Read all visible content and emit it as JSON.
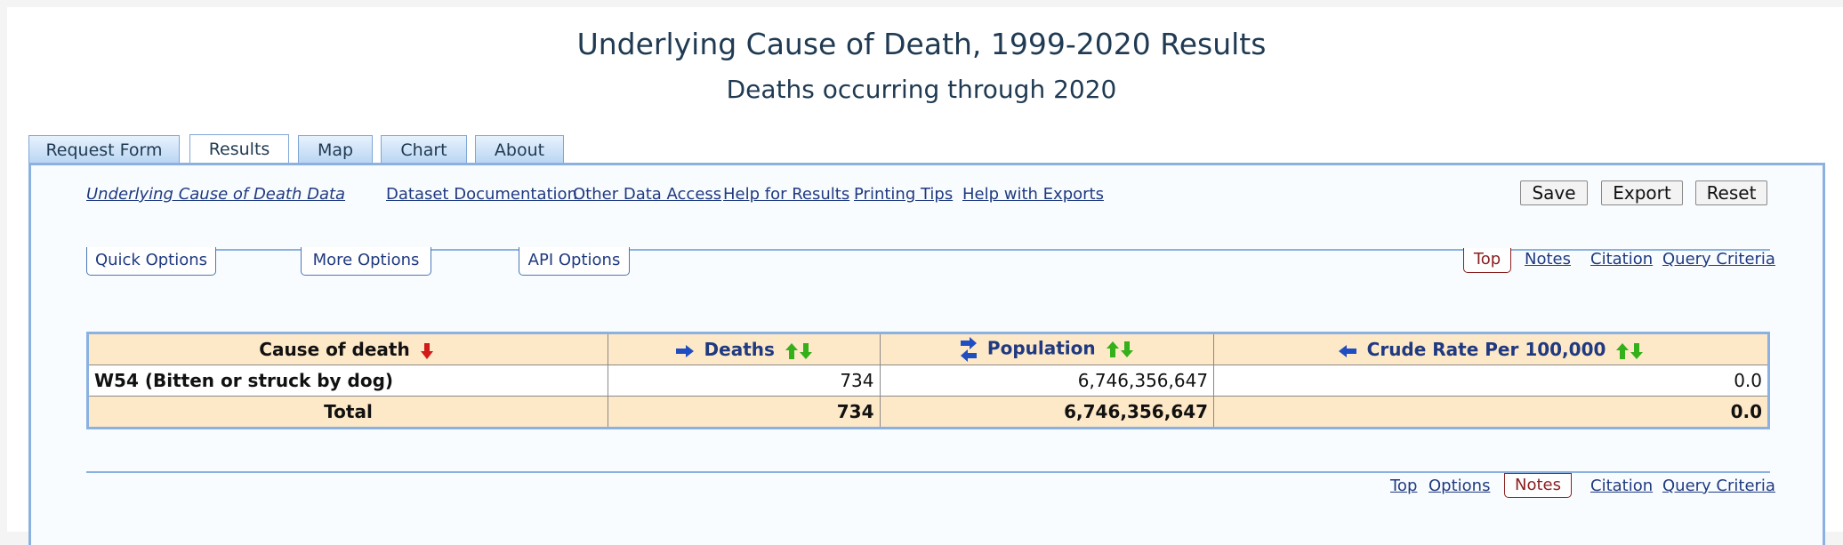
{
  "header": {
    "title": "Underlying Cause of Death, 1999-2020 Results",
    "subtitle": "Deaths occurring through 2020"
  },
  "tabs": [
    {
      "label": "Request Form",
      "active": false
    },
    {
      "label": "Results",
      "active": true
    },
    {
      "label": "Map",
      "active": false
    },
    {
      "label": "Chart",
      "active": false
    },
    {
      "label": "About",
      "active": false
    }
  ],
  "links": {
    "dataset": "Underlying Cause of Death Data",
    "documentation": "Dataset Documentation",
    "other_access": "Other Data Access",
    "help_results": "Help for Results",
    "printing_tips": "Printing Tips",
    "help_exports": "Help with Exports"
  },
  "actions": {
    "save": "Save",
    "export": "Export",
    "reset": "Reset"
  },
  "options": {
    "quick": "Quick Options",
    "more": "More Options",
    "api": "API Options"
  },
  "top_nav": {
    "top": "Top",
    "notes": "Notes",
    "citation": "Citation",
    "query_criteria": "Query Criteria"
  },
  "bottom_nav": {
    "top": "Top",
    "options": "Options",
    "notes": "Notes",
    "citation": "Citation",
    "query_criteria": "Query Criteria"
  },
  "table": {
    "columns": [
      "Cause of death",
      "Deaths",
      "Population",
      "Crude Rate Per 100,000"
    ],
    "rows": [
      {
        "cause": "W54 (Bitten or struck by dog)",
        "deaths": "734",
        "population": "6,746,356,647",
        "crude_rate": "0.0"
      }
    ],
    "total": {
      "label": "Total",
      "deaths": "734",
      "population": "6,746,356,647",
      "crude_rate": "0.0"
    }
  },
  "colors": {
    "accent_blue": "#8ab1e0",
    "header_bg": "#fde8c7",
    "link": "#1f3a80",
    "sort_down_red": "#d11a1a",
    "sort_green": "#33b01a",
    "arrow_blue": "#1f4ec2"
  },
  "icons": [
    "sort-descending-red-icon",
    "arrow-right-icon",
    "sort-up-down-icon",
    "swap-arrows-icon",
    "arrow-left-icon"
  ]
}
